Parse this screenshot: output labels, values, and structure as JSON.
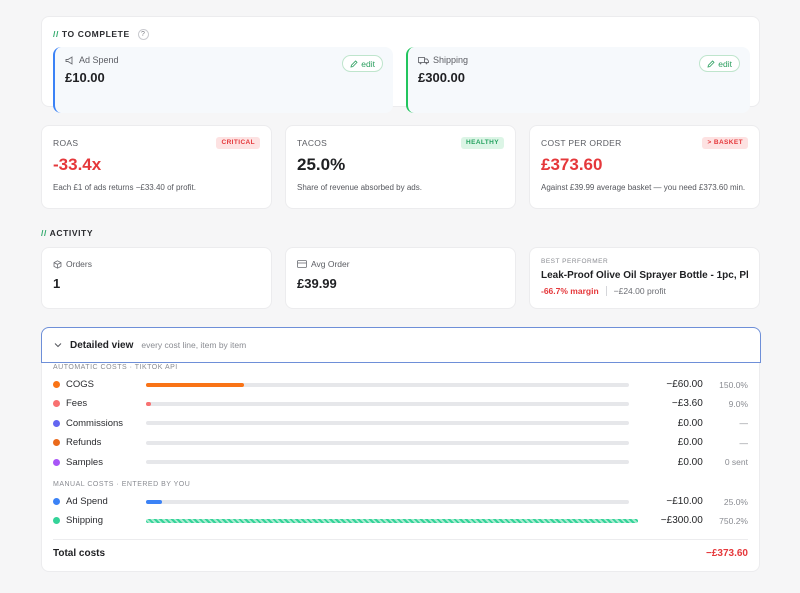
{
  "to_complete": {
    "title": "TO COMPLETE",
    "slash": "//",
    "help": "?",
    "items": [
      {
        "label": "Ad Spend",
        "value": "£10.00",
        "edit_label": "edit",
        "icon": "megaphone-icon",
        "accent": "#3b82f6"
      },
      {
        "label": "Shipping",
        "value": "£300.00",
        "edit_label": "edit",
        "icon": "truck-icon",
        "accent": "#22c55e"
      }
    ]
  },
  "metrics": [
    {
      "label": "ROAS",
      "value": "-33.4x",
      "badge": "CRITICAL",
      "desc": "Each £1 of ads returns −£33.40 of profit.",
      "value_color": "#e5383b"
    },
    {
      "label": "TACOS",
      "value": "25.0%",
      "badge": "HEALTHY",
      "desc": "Share of revenue absorbed by ads.",
      "value_color": "#1f2023"
    },
    {
      "label": "COST PER ORDER",
      "value": "£373.60",
      "badge": "> BASKET",
      "desc": "Against £39.99 average basket — you need £373.60 min.",
      "value_color": "#e5383b"
    }
  ],
  "activity": {
    "title": "ACTIVITY",
    "slash": "//",
    "orders": {
      "label": "Orders",
      "value": "1",
      "icon": "box-icon"
    },
    "avg_order": {
      "label": "Avg Order",
      "value": "£39.99",
      "icon": "card-icon"
    },
    "best": {
      "label": "BEST PERFORMER",
      "product": "Leak-Proof Olive Oil Sprayer Bottle - 1pc, Pl...",
      "margin": "-66.7% margin",
      "profit": "−£24.00 profit"
    }
  },
  "detailed": {
    "title": "Detailed view",
    "subtitle": "every cost line, item by item",
    "automatic_label": "AUTOMATIC COSTS · TIKTOK API",
    "manual_label": "MANUAL COSTS · ENTERED BY YOU",
    "automatic": [
      {
        "label": "COGS",
        "amount": "−£60.00",
        "pct": "150.0%",
        "color": "#f97316",
        "fill": 0.2
      },
      {
        "label": "Fees",
        "amount": "−£3.60",
        "pct": "9.0%",
        "color": "#f87171",
        "fill": 0.012
      },
      {
        "label": "Commissions",
        "amount": "£0.00",
        "pct": "—",
        "color": "#6366f1",
        "fill": 0
      },
      {
        "label": "Refunds",
        "amount": "£0.00",
        "pct": "—",
        "color": "#ea6a1c",
        "fill": 0
      },
      {
        "label": "Samples",
        "amount": "£0.00",
        "pct": "0 sent",
        "color": "#a855f7",
        "fill": 0
      }
    ],
    "manual": [
      {
        "label": "Ad Spend",
        "amount": "−£10.00",
        "pct": "25.0%",
        "color": "#3b82f6",
        "fill": 0.033
      },
      {
        "label": "Shipping",
        "amount": "−£300.00",
        "pct": "750.2%",
        "color": "#34d399",
        "fill": 1.0
      }
    ],
    "total_label": "Total costs",
    "total_value": "−£373.60"
  }
}
